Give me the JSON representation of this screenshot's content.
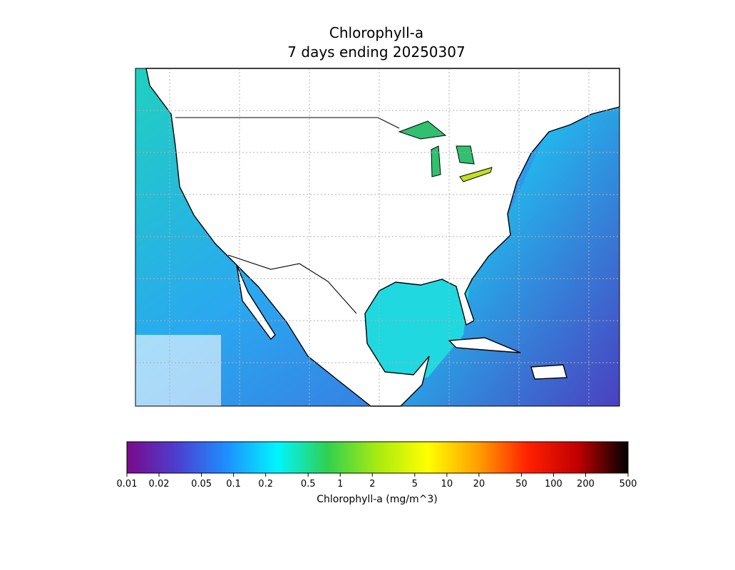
{
  "title": [
    "Chlorophyll-a",
    "7 days ending 20250307"
  ],
  "colorbar": {
    "label": "Chlorophyll-a (mg/m^3)",
    "scale": "log",
    "lim": [
      0.01,
      500
    ],
    "ticks": [
      0.01,
      0.02,
      0.05,
      0.1,
      0.2,
      0.5,
      1,
      2,
      5,
      10,
      20,
      50,
      100,
      200,
      500
    ],
    "colors": [
      "#7a0a8a",
      "#4b3fd0",
      "#1e90ff",
      "#00f5ff",
      "#30d050",
      "#a8ea10",
      "#ffff00",
      "#ffa000",
      "#ff2000",
      "#c00000",
      "#000000"
    ]
  }
}
